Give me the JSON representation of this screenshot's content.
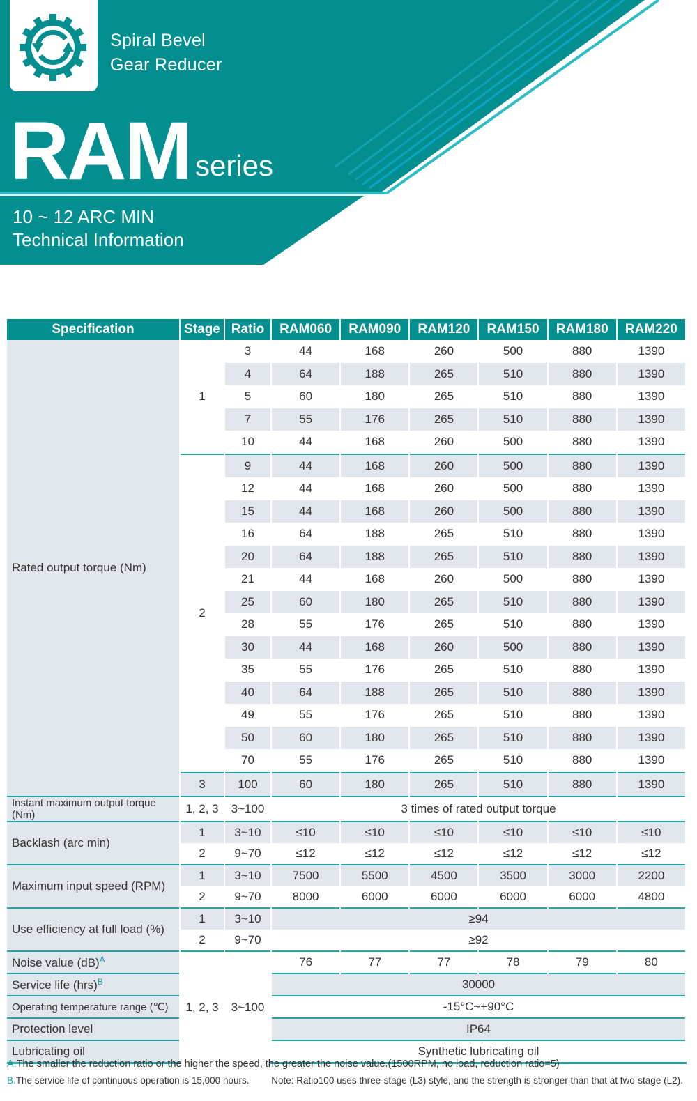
{
  "brand": {
    "line1": "Spiral Bevel",
    "line2": "Gear Reducer",
    "logo_icon": "gear-refresh-icon",
    "teal": "#038f8f",
    "accent": "#2bbcc4"
  },
  "title": {
    "main": "RAM",
    "suffix": "series",
    "tag1": "10 ~ 12 ARC MIN",
    "tag2": "Technical Information"
  },
  "table": {
    "headers": [
      "Specification",
      "Stage",
      "Ratio",
      "RAM060",
      "RAM090",
      "RAM120",
      "RAM150",
      "RAM180",
      "RAM220"
    ],
    "torque": {
      "label": "Rated output torque (Nm)",
      "stages": [
        {
          "stage": "1",
          "rows": 5
        },
        {
          "stage": "2",
          "rows": 14
        },
        {
          "stage": "3",
          "rows": 1
        }
      ],
      "rows": [
        {
          "ratio": "3",
          "values": [
            "44",
            "168",
            "260",
            "500",
            "880",
            "1390"
          ]
        },
        {
          "ratio": "4",
          "values": [
            "64",
            "188",
            "265",
            "510",
            "880",
            "1390"
          ]
        },
        {
          "ratio": "5",
          "values": [
            "60",
            "180",
            "265",
            "510",
            "880",
            "1390"
          ]
        },
        {
          "ratio": "7",
          "values": [
            "55",
            "176",
            "265",
            "510",
            "880",
            "1390"
          ]
        },
        {
          "ratio": "10",
          "values": [
            "44",
            "168",
            "260",
            "500",
            "880",
            "1390"
          ]
        },
        {
          "ratio": "9",
          "values": [
            "44",
            "168",
            "260",
            "500",
            "880",
            "1390"
          ]
        },
        {
          "ratio": "12",
          "values": [
            "44",
            "168",
            "260",
            "500",
            "880",
            "1390"
          ]
        },
        {
          "ratio": "15",
          "values": [
            "44",
            "168",
            "260",
            "500",
            "880",
            "1390"
          ]
        },
        {
          "ratio": "16",
          "values": [
            "64",
            "188",
            "265",
            "510",
            "880",
            "1390"
          ]
        },
        {
          "ratio": "20",
          "values": [
            "64",
            "188",
            "265",
            "510",
            "880",
            "1390"
          ]
        },
        {
          "ratio": "21",
          "values": [
            "44",
            "168",
            "260",
            "500",
            "880",
            "1390"
          ]
        },
        {
          "ratio": "25",
          "values": [
            "60",
            "180",
            "265",
            "510",
            "880",
            "1390"
          ]
        },
        {
          "ratio": "28",
          "values": [
            "55",
            "176",
            "265",
            "510",
            "880",
            "1390"
          ]
        },
        {
          "ratio": "30",
          "values": [
            "44",
            "168",
            "260",
            "500",
            "880",
            "1390"
          ]
        },
        {
          "ratio": "35",
          "values": [
            "55",
            "176",
            "265",
            "510",
            "880",
            "1390"
          ]
        },
        {
          "ratio": "40",
          "values": [
            "64",
            "188",
            "265",
            "510",
            "880",
            "1390"
          ]
        },
        {
          "ratio": "49",
          "values": [
            "55",
            "176",
            "265",
            "510",
            "880",
            "1390"
          ]
        },
        {
          "ratio": "50",
          "values": [
            "60",
            "180",
            "265",
            "510",
            "880",
            "1390"
          ]
        },
        {
          "ratio": "70",
          "values": [
            "55",
            "176",
            "265",
            "510",
            "880",
            "1390"
          ]
        },
        {
          "ratio": "100",
          "values": [
            "60",
            "180",
            "265",
            "510",
            "880",
            "1390"
          ]
        }
      ]
    },
    "instant": {
      "label": "Instant maximum output torque (Nm)",
      "stage": "1, 2, 3",
      "ratio": "3~100",
      "value": "3 times of rated output torque"
    },
    "backlash": {
      "label": "Backlash (arc min)",
      "rows": [
        {
          "stage": "1",
          "ratio": "3~10",
          "values": [
            "≤10",
            "≤10",
            "≤10",
            "≤10",
            "≤10",
            "≤10"
          ]
        },
        {
          "stage": "2",
          "ratio": "9~70",
          "values": [
            "≤12",
            "≤12",
            "≤12",
            "≤12",
            "≤12",
            "≤12"
          ]
        }
      ]
    },
    "speed": {
      "label": "Maximum input speed (RPM)",
      "rows": [
        {
          "stage": "1",
          "ratio": "3~10",
          "values": [
            "7500",
            "5500",
            "4500",
            "3500",
            "3000",
            "2200"
          ]
        },
        {
          "stage": "2",
          "ratio": "9~70",
          "values": [
            "8000",
            "6000",
            "6000",
            "6000",
            "6000",
            "4800"
          ]
        }
      ]
    },
    "efficiency": {
      "label": "Use efficiency at full load (%)",
      "rows": [
        {
          "stage": "1",
          "ratio": "3~10",
          "value": "≥94"
        },
        {
          "stage": "2",
          "ratio": "9~70",
          "value": "≥92"
        }
      ]
    },
    "misc": {
      "stage": "1, 2, 3",
      "ratio": "3~100",
      "rows": [
        {
          "label": "Noise value (dB)",
          "note": "A",
          "values": [
            "76",
            "77",
            "77",
            "78",
            "79",
            "80"
          ]
        },
        {
          "label": "Service life (hrs)",
          "note": "B",
          "value": "30000"
        },
        {
          "label": "Operating temperature range (℃)",
          "value": "-15°C~+90°C"
        },
        {
          "label": "Protection level",
          "value": "IP64"
        },
        {
          "label": "Lubricating oil",
          "value": "Synthetic lubricating oil"
        }
      ]
    }
  },
  "footnotes": {
    "a_key": "A.",
    "a_text": "The smaller the reduction ratio or the higher the speed, the greater the noise value.(1500RPM, no load, reduction ratio=5)",
    "b_key": "B.",
    "b_text": "The service life of continuous operation is 15,000 hours.",
    "note_key": "Note:",
    "note_text": "Ratio100 uses three-stage (L3) style, and the strength is stronger than that at two-stage (L2)."
  }
}
